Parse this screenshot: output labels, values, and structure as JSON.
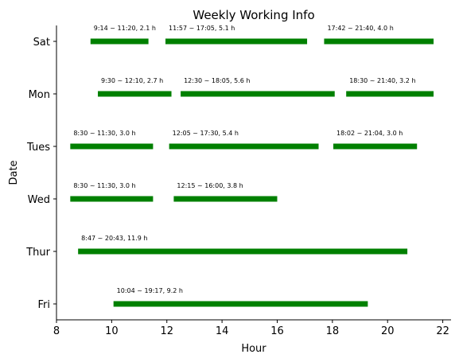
{
  "chart_data": {
    "type": "bar",
    "orientation": "horizontal-range",
    "title": "Weekly Working Info",
    "xlabel": "Hour",
    "ylabel": "Date",
    "xlim": [
      8,
      22.3
    ],
    "xticks": [
      8,
      10,
      12,
      14,
      16,
      18,
      20,
      22
    ],
    "categories": [
      "Sat",
      "Mon",
      "Tues",
      "Wed",
      "Thur",
      "Fri"
    ],
    "grid": false,
    "bar_color": "#008000",
    "rows": [
      {
        "day": "Sat",
        "segments": [
          {
            "start": 9.2333,
            "end": 11.3333,
            "label": "9:14 ~ 11:20, 2.1 h"
          },
          {
            "start": 11.95,
            "end": 17.0833,
            "label": "11:57 ~ 17:05, 5.1 h"
          },
          {
            "start": 17.7,
            "end": 21.6667,
            "label": "17:42 ~ 21:40, 4.0 h"
          }
        ]
      },
      {
        "day": "Mon",
        "segments": [
          {
            "start": 9.5,
            "end": 12.1667,
            "label": "9:30 ~ 12:10, 2.7 h"
          },
          {
            "start": 12.5,
            "end": 18.0833,
            "label": "12:30 ~ 18:05, 5.6 h"
          },
          {
            "start": 18.5,
            "end": 21.6667,
            "label": "18:30 ~ 21:40, 3.2 h"
          }
        ]
      },
      {
        "day": "Tues",
        "segments": [
          {
            "start": 8.5,
            "end": 11.5,
            "label": "8:30 ~ 11:30, 3.0 h"
          },
          {
            "start": 12.0833,
            "end": 17.5,
            "label": "12:05 ~ 17:30, 5.4 h"
          },
          {
            "start": 18.0333,
            "end": 21.0667,
            "label": "18:02 ~ 21:04, 3.0 h"
          }
        ]
      },
      {
        "day": "Wed",
        "segments": [
          {
            "start": 8.5,
            "end": 11.5,
            "label": "8:30 ~ 11:30, 3.0 h"
          },
          {
            "start": 12.25,
            "end": 16.0,
            "label": "12:15 ~ 16:00, 3.8 h"
          }
        ]
      },
      {
        "day": "Thur",
        "segments": [
          {
            "start": 8.7833,
            "end": 20.7167,
            "label": "8:47 ~ 20:43, 11.9 h"
          }
        ]
      },
      {
        "day": "Fri",
        "segments": [
          {
            "start": 10.0667,
            "end": 19.2833,
            "label": "10:04 ~ 19:17, 9.2 h"
          }
        ]
      }
    ]
  }
}
